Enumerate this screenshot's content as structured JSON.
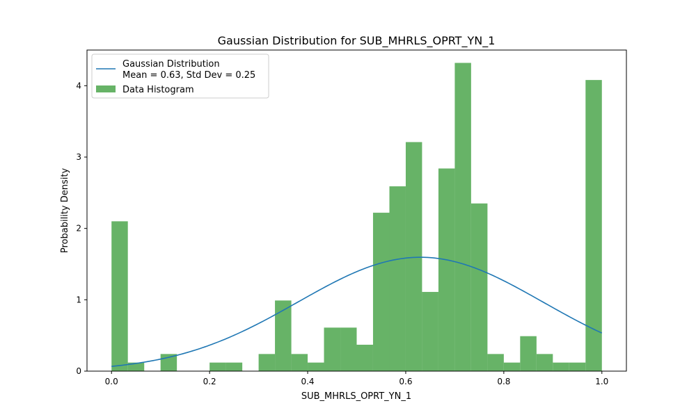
{
  "chart_data": {
    "type": "bar",
    "title": "Gaussian Distribution for SUB_MHRLS_OPRT_YN_1",
    "xlabel": "SUB_MHRLS_OPRT_YN_1",
    "ylabel": "Probability Density",
    "xlim": [
      -0.05,
      1.05
    ],
    "ylim": [
      0,
      4.5
    ],
    "x_ticks": [
      0.0,
      0.2,
      0.4,
      0.6,
      0.8,
      1.0
    ],
    "x_tick_labels": [
      "0.0",
      "0.2",
      "0.4",
      "0.6",
      "0.8",
      "1.0"
    ],
    "y_ticks": [
      0,
      1,
      2,
      3,
      4
    ],
    "y_tick_labels": [
      "0",
      "1",
      "2",
      "3",
      "4"
    ],
    "grid": false,
    "legend_position": "top-left",
    "histogram": {
      "label": "Data Histogram",
      "color": "#4CA64C",
      "bin_edges": [
        0.0,
        0.0333,
        0.0667,
        0.1,
        0.1333,
        0.1667,
        0.2,
        0.2333,
        0.2667,
        0.3,
        0.3333,
        0.3667,
        0.4,
        0.4333,
        0.4667,
        0.5,
        0.5333,
        0.5667,
        0.6,
        0.6333,
        0.6667,
        0.7,
        0.7333,
        0.7667,
        0.8,
        0.8333,
        0.8667,
        0.9,
        0.9333,
        0.9667,
        1.0
      ],
      "densities": [
        2.1,
        0.12,
        0.0,
        0.24,
        0.0,
        0.0,
        0.12,
        0.12,
        0.0,
        0.24,
        0.99,
        0.24,
        0.12,
        0.61,
        0.61,
        0.37,
        2.22,
        2.59,
        3.21,
        1.11,
        2.84,
        4.32,
        2.35,
        0.24,
        0.12,
        0.49,
        0.24,
        0.12,
        0.12,
        4.08
      ]
    },
    "gaussian": {
      "label": "Gaussian Distribution\nMean = 0.63, Std Dev = 0.25",
      "label_line1": "Gaussian Distribution",
      "label_line2": "Mean = 0.63, Std Dev = 0.25",
      "mean": 0.63,
      "std": 0.25,
      "x_range": [
        0.0,
        1.0
      ],
      "color": "#1f77b4"
    }
  }
}
